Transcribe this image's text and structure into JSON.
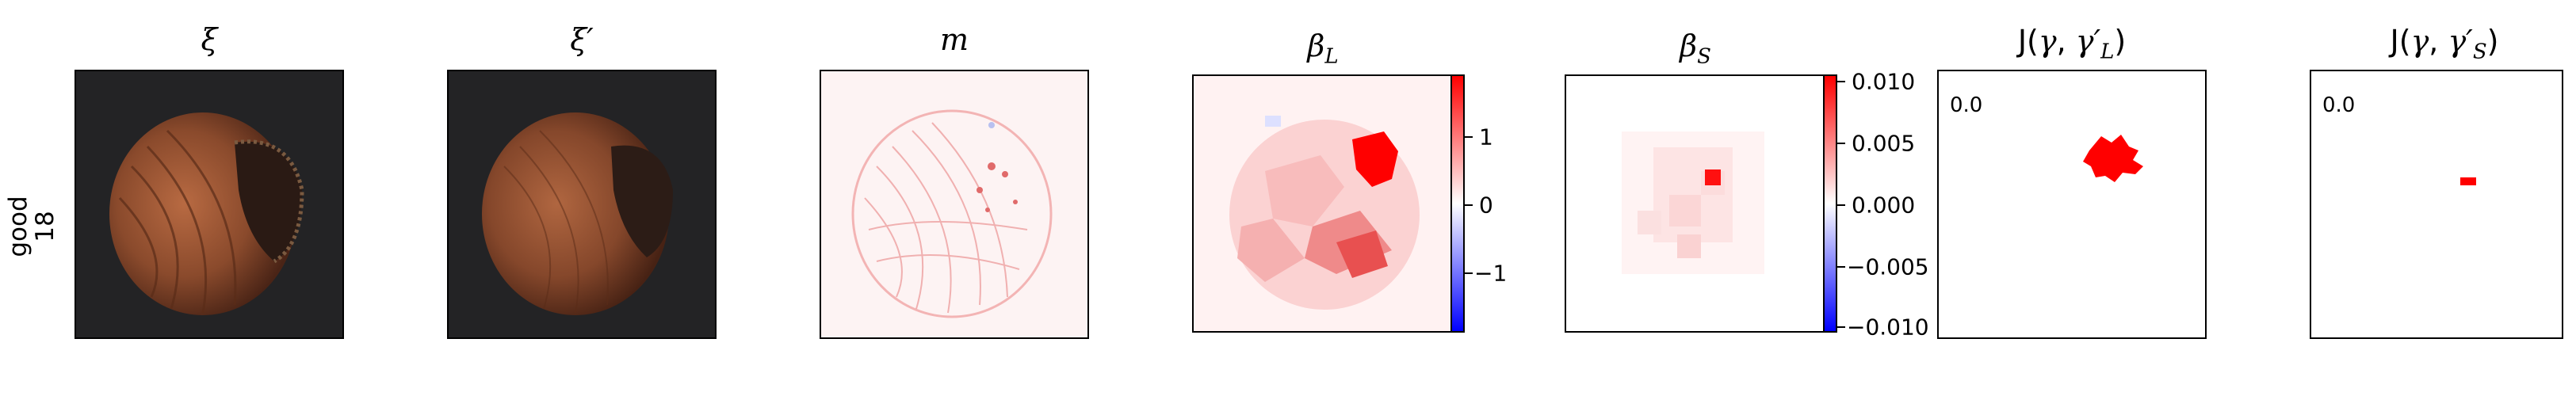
{
  "row_label": {
    "line1": "good",
    "line2": "18"
  },
  "panels": {
    "xi": {
      "title": "ξ"
    },
    "xi_prime": {
      "title": "ξ′"
    },
    "m": {
      "title": "m"
    },
    "beta_L": {
      "title_base": "β",
      "title_sub": "L",
      "colorbar_ticks": [
        "1",
        "0",
        "−1"
      ]
    },
    "beta_S": {
      "title_base": "β",
      "title_sub": "S",
      "colorbar_ticks": [
        "0.010",
        "0.005",
        "0.000",
        "−0.005",
        "−0.010"
      ]
    },
    "J_L": {
      "title_prefix": "J(",
      "title_gamma": "γ",
      "title_sep": ", ",
      "title_gamma2": "γ′",
      "title_sub": "L",
      "title_suffix": ")",
      "value": "0.0"
    },
    "J_S": {
      "title_prefix": "J(",
      "title_gamma": "γ",
      "title_sep": ", ",
      "title_gamma2": "γ′",
      "title_sub": "S",
      "title_suffix": ")",
      "value": "0.0"
    }
  },
  "colors": {
    "background": "#ffffff",
    "image_background": "#232325",
    "hazelnut_shell": "#8a4a2c",
    "positive": "#ff0000",
    "negative": "#0000ff"
  }
}
